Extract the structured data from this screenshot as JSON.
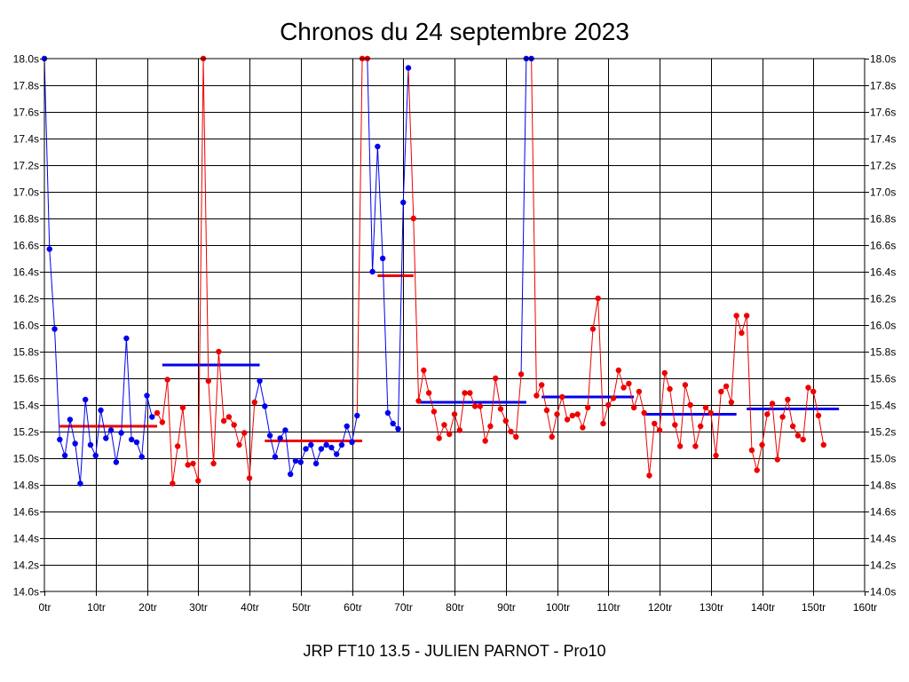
{
  "chart_data": {
    "type": "line",
    "title": "Chronos du 24 septembre 2023",
    "footer": "JRP FT10 13.5 - JULIEN PARNOT - Pro10",
    "x_ticks": [
      "0tr",
      "10tr",
      "20tr",
      "30tr",
      "40tr",
      "50tr",
      "60tr",
      "70tr",
      "80tr",
      "90tr",
      "100tr",
      "110tr",
      "120tr",
      "130tr",
      "140tr",
      "150tr",
      "160tr"
    ],
    "y_ticks": [
      "14.0s",
      "14.2s",
      "14.4s",
      "14.6s",
      "14.8s",
      "15.0s",
      "15.2s",
      "15.4s",
      "15.6s",
      "15.8s",
      "16.0s",
      "16.2s",
      "16.4s",
      "16.6s",
      "16.8s",
      "17.0s",
      "17.2s",
      "17.4s",
      "17.6s",
      "17.8s",
      "18.0s"
    ],
    "xlim": [
      0,
      160
    ],
    "ylim": [
      14.0,
      18.0
    ],
    "grid": true,
    "colors": {
      "blue": "#0000ee",
      "red": "#ee0000"
    },
    "segments": [
      {
        "color": "blue",
        "start": 0,
        "values": [
          18.0,
          16.57,
          15.97,
          15.14,
          15.02,
          15.29,
          15.11,
          14.81,
          15.44,
          15.1,
          15.02,
          15.36,
          15.15,
          15.21,
          14.97,
          15.19,
          15.9,
          15.14,
          15.12,
          15.01,
          15.47,
          15.31
        ]
      },
      {
        "color": "red",
        "start": 22,
        "values": [
          15.34,
          15.27,
          15.59,
          14.81,
          15.09,
          15.38,
          14.95,
          14.96,
          14.83,
          18.0,
          15.58,
          14.96,
          15.8,
          15.28,
          15.31,
          15.25,
          15.1,
          15.19,
          14.85,
          15.42
        ]
      },
      {
        "color": "blue",
        "start": 42,
        "values": [
          15.58,
          15.39,
          15.17,
          15.01,
          15.15,
          15.21,
          14.88,
          14.98,
          14.97,
          15.07,
          15.1,
          14.96,
          15.07,
          15.1,
          15.08,
          15.03,
          15.1,
          15.24,
          15.12,
          15.32
        ]
      },
      {
        "color": "red",
        "start": 62,
        "values": [
          18.0,
          18.0
        ]
      },
      {
        "color": "blue",
        "start": 64,
        "values": [
          16.4,
          17.34,
          16.5,
          15.34,
          15.26,
          15.22,
          16.92,
          17.93
        ]
      },
      {
        "color": "red",
        "start": 72,
        "values": [
          16.8,
          15.43,
          15.66,
          15.49,
          15.35,
          15.15,
          15.25,
          15.18,
          15.33,
          15.21,
          15.49,
          15.49,
          15.39,
          15.39,
          15.13,
          15.24,
          15.6,
          15.37,
          15.28,
          15.2,
          15.16,
          15.63
        ]
      },
      {
        "color": "blue",
        "start": 94,
        "values": [
          18.0,
          18.0
        ]
      },
      {
        "color": "red",
        "start": 96,
        "values": [
          15.47,
          15.55,
          15.36,
          15.16,
          15.33,
          15.46,
          15.29,
          15.32,
          15.33,
          15.23,
          15.38,
          15.97,
          16.2,
          15.26,
          15.4,
          15.45,
          15.66,
          15.53,
          15.56,
          15.38,
          15.5,
          15.34,
          14.87,
          15.26,
          15.21,
          15.64,
          15.52,
          15.25,
          15.09,
          15.55,
          15.4,
          15.09,
          15.24,
          15.38,
          15.34,
          15.02,
          15.5,
          15.54,
          15.42,
          16.07,
          15.94,
          16.07,
          15.06,
          14.91,
          15.1,
          15.33,
          15.41,
          14.99,
          15.31,
          15.44,
          15.24,
          15.17,
          15.14,
          15.53,
          15.5,
          15.32,
          15.1
        ]
      }
    ],
    "averages": [
      {
        "color": "red",
        "x_start": 3,
        "x_end": 22,
        "value": 15.24
      },
      {
        "color": "blue",
        "x_start": 23,
        "x_end": 42,
        "value": 15.7
      },
      {
        "color": "red",
        "x_start": 43,
        "x_end": 62,
        "value": 15.13
      },
      {
        "color": "red",
        "x_start": 65,
        "x_end": 72,
        "value": 16.37
      },
      {
        "color": "blue",
        "x_start": 73,
        "x_end": 94,
        "value": 15.42
      },
      {
        "color": "blue",
        "x_start": 97,
        "x_end": 115,
        "value": 15.46
      },
      {
        "color": "blue",
        "x_start": 117,
        "x_end": 135,
        "value": 15.33
      },
      {
        "color": "blue",
        "x_start": 137,
        "x_end": 155,
        "value": 15.37
      }
    ]
  }
}
